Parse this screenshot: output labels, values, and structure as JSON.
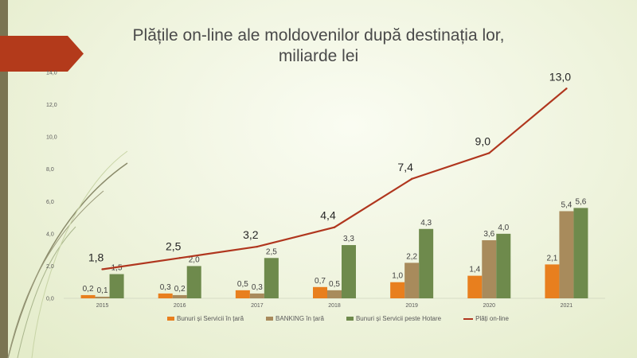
{
  "title_line1": "Plățile on-line ale moldovenilor după destinația lor,",
  "title_line2": "miliarde lei",
  "chart_data": {
    "type": "bar",
    "categories": [
      "2015",
      "2016",
      "2017",
      "2018",
      "2019",
      "2020",
      "2021"
    ],
    "ylim": [
      0,
      14
    ],
    "yticks": [
      "0,0",
      "2,0",
      "4,0",
      "6,0",
      "8,0",
      "10,0",
      "12,0",
      "14,0"
    ],
    "grid": false,
    "legend_position": "bottom",
    "series": [
      {
        "name": "Bunuri și Servicii în țară",
        "type": "bar",
        "color": "#e87f1e",
        "values": [
          0.2,
          0.3,
          0.5,
          0.7,
          1.0,
          1.4,
          2.1
        ],
        "labels": [
          "0,2",
          "0,3",
          "0,5",
          "0,7",
          "1,0",
          "1,4",
          "2,1"
        ]
      },
      {
        "name": "BANKING în țară",
        "type": "bar",
        "color": "#a88b5c",
        "values": [
          0.1,
          0.2,
          0.3,
          0.5,
          2.2,
          3.6,
          5.4
        ],
        "labels": [
          "0,1",
          "0,2",
          "0,3",
          "0,5",
          "2,2",
          "3,6",
          "5,4"
        ]
      },
      {
        "name": "Bunuri și Servicii peste Hotare",
        "type": "bar",
        "color": "#6e8a4c",
        "values": [
          1.5,
          2.0,
          2.5,
          3.3,
          4.3,
          4.0,
          5.6
        ],
        "labels": [
          "1,5",
          "2,0",
          "2,5",
          "3,3",
          "4,3",
          "4,0",
          "5,6"
        ]
      },
      {
        "name": "Plăți on-line",
        "type": "line",
        "color": "#b0361e",
        "values": [
          1.8,
          2.5,
          3.2,
          4.4,
          7.4,
          9.0,
          13.0
        ],
        "labels": [
          "1,8",
          "2,5",
          "3,2",
          "4,4",
          "7,4",
          "9,0",
          "13,0"
        ]
      }
    ]
  }
}
